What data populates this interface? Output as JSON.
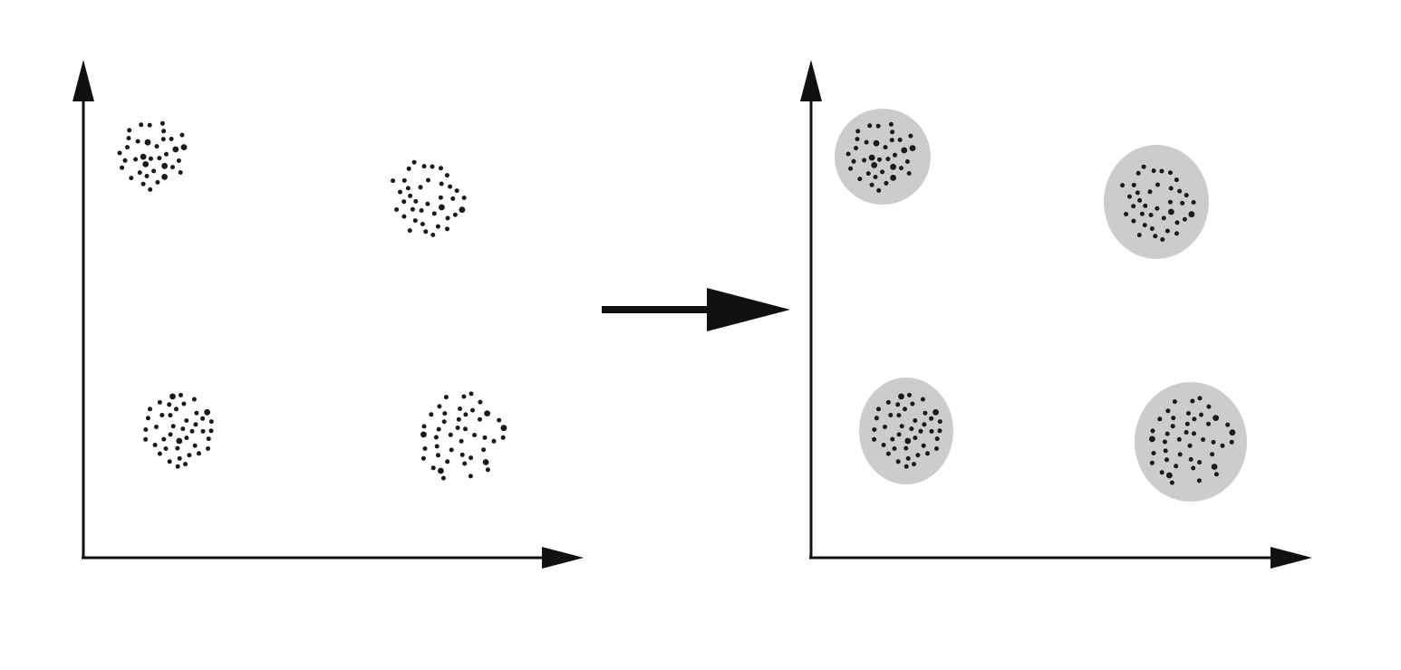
{
  "figure": {
    "type": "clustering-illustration",
    "colors": {
      "axis": "#111111",
      "point": "#1a1a1a",
      "cluster_fill": "#cccccc",
      "background": "#ffffff"
    },
    "panels": [
      {
        "name": "unclustered",
        "highlight_clusters": false,
        "clusters": [
          {
            "name": "top-left",
            "points": 36
          },
          {
            "name": "top-right",
            "points": 38
          },
          {
            "name": "bottom-left",
            "points": 42
          },
          {
            "name": "bottom-right",
            "points": 44
          }
        ]
      },
      {
        "name": "clustered",
        "highlight_clusters": true,
        "clusters": [
          {
            "name": "top-left",
            "points": 36
          },
          {
            "name": "top-right",
            "points": 38
          },
          {
            "name": "bottom-left",
            "points": 42
          },
          {
            "name": "bottom-right",
            "points": 44
          }
        ]
      }
    ],
    "transition_arrow": {
      "direction": "right",
      "from": "unclustered",
      "to": "clustered"
    }
  }
}
